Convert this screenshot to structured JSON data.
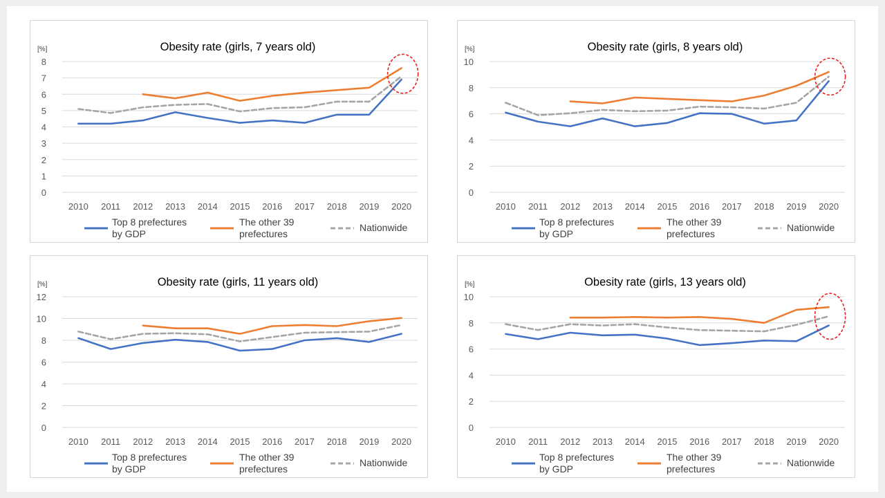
{
  "chart_data": [
    {
      "type": "line",
      "title": "Obesity rate (girls, 7 years old)",
      "ylabel": "[%]",
      "x": [
        "2010",
        "2011",
        "2012",
        "2013",
        "2014",
        "2015",
        "2016",
        "2017",
        "2018",
        "2019",
        "2020"
      ],
      "ylim": [
        0,
        8
      ],
      "yticks": [
        "0",
        "1",
        "2",
        "3",
        "4",
        "5",
        "6",
        "7",
        "8"
      ],
      "grid": true,
      "legend_position": "bottom",
      "highlight": true,
      "series": [
        {
          "name": "Top 8 prefectures by GDP",
          "legend_lines": [
            "Top 8 prefectures",
            "by GDP"
          ],
          "color": "#4472c4",
          "dash": false,
          "values": [
            4.2,
            4.2,
            4.4,
            4.9,
            4.55,
            4.25,
            4.4,
            4.25,
            4.75,
            4.75,
            6.9
          ]
        },
        {
          "name": "The other 39 prefectures",
          "legend_lines": [
            "The other 39",
            "prefectures"
          ],
          "color": "#ed7d31",
          "dash": false,
          "values": [
            null,
            null,
            6.0,
            5.75,
            6.1,
            5.6,
            5.9,
            6.1,
            6.25,
            6.4,
            7.6
          ]
        },
        {
          "name": "Nationwide",
          "legend_lines": [
            "Nationwide"
          ],
          "color": "#a5a5a5",
          "dash": true,
          "values": [
            5.1,
            4.85,
            5.2,
            5.35,
            5.4,
            4.95,
            5.15,
            5.2,
            5.55,
            5.55,
            7.1
          ]
        }
      ]
    },
    {
      "type": "line",
      "title": "Obesity rate (girls, 8 years old)",
      "ylabel": "[%]",
      "x": [
        "2010",
        "2011",
        "2012",
        "2013",
        "2014",
        "2015",
        "2016",
        "2017",
        "2018",
        "2019",
        "2020"
      ],
      "ylim": [
        0,
        10
      ],
      "yticks": [
        "0",
        "2",
        "4",
        "6",
        "8",
        "10"
      ],
      "grid": true,
      "legend_position": "bottom",
      "highlight": true,
      "series": [
        {
          "name": "Top 8 prefectures by GDP",
          "legend_lines": [
            "Top 8 prefectures",
            "by GDP"
          ],
          "color": "#4472c4",
          "dash": false,
          "values": [
            6.1,
            5.4,
            5.05,
            5.65,
            5.05,
            5.3,
            6.05,
            6.0,
            5.25,
            5.5,
            8.5
          ]
        },
        {
          "name": "The other 39 prefectures",
          "legend_lines": [
            "The other 39",
            "prefectures"
          ],
          "color": "#ed7d31",
          "dash": false,
          "values": [
            null,
            null,
            6.95,
            6.8,
            7.25,
            7.15,
            7.05,
            6.95,
            7.4,
            8.15,
            9.2
          ]
        },
        {
          "name": "Nationwide",
          "legend_lines": [
            "Nationwide"
          ],
          "color": "#a5a5a5",
          "dash": true,
          "values": [
            6.85,
            5.9,
            6.05,
            6.3,
            6.2,
            6.25,
            6.55,
            6.5,
            6.4,
            6.85,
            8.85
          ]
        }
      ]
    },
    {
      "type": "line",
      "title": "Obesity rate (girls, 11 years old)",
      "ylabel": "[%]",
      "x": [
        "2010",
        "2011",
        "2012",
        "2013",
        "2014",
        "2015",
        "2016",
        "2017",
        "2018",
        "2019",
        "2020"
      ],
      "ylim": [
        0,
        12
      ],
      "yticks": [
        "0",
        "2",
        "4",
        "6",
        "8",
        "10",
        "12"
      ],
      "grid": true,
      "legend_position": "bottom",
      "highlight": false,
      "series": [
        {
          "name": "Top 8 prefectures by GDP",
          "legend_lines": [
            "Top 8 prefectures",
            "by GDP"
          ],
          "color": "#4472c4",
          "dash": false,
          "values": [
            8.2,
            7.2,
            7.75,
            8.05,
            7.85,
            7.05,
            7.2,
            8.0,
            8.2,
            7.85,
            8.6
          ]
        },
        {
          "name": "The other 39 prefectures",
          "legend_lines": [
            "The other 39",
            "prefectures"
          ],
          "color": "#ed7d31",
          "dash": false,
          "values": [
            null,
            null,
            9.35,
            9.1,
            9.1,
            8.6,
            9.3,
            9.4,
            9.3,
            9.75,
            10.05
          ]
        },
        {
          "name": "Nationwide",
          "legend_lines": [
            "Nationwide"
          ],
          "color": "#a5a5a5",
          "dash": true,
          "values": [
            8.8,
            8.1,
            8.6,
            8.65,
            8.55,
            7.9,
            8.3,
            8.7,
            8.75,
            8.8,
            9.4
          ]
        }
      ]
    },
    {
      "type": "line",
      "title": "Obesity rate (girls, 13 years old)",
      "ylabel": "[%]",
      "x": [
        "2010",
        "2011",
        "2012",
        "2013",
        "2014",
        "2015",
        "2016",
        "2017",
        "2018",
        "2019",
        "2020"
      ],
      "ylim": [
        0,
        10
      ],
      "yticks": [
        "0",
        "2",
        "4",
        "6",
        "8",
        "10"
      ],
      "grid": true,
      "legend_position": "bottom",
      "highlight": true,
      "series": [
        {
          "name": "Top 8 prefectures by GDP",
          "legend_lines": [
            "Top 8 prefectures",
            "by GDP"
          ],
          "color": "#4472c4",
          "dash": false,
          "values": [
            7.15,
            6.75,
            7.25,
            7.05,
            7.1,
            6.8,
            6.3,
            6.45,
            6.65,
            6.6,
            7.8
          ]
        },
        {
          "name": "The other 39 prefectures",
          "legend_lines": [
            "The other 39",
            "prefectures"
          ],
          "color": "#ed7d31",
          "dash": false,
          "values": [
            null,
            null,
            8.4,
            8.4,
            8.45,
            8.4,
            8.45,
            8.3,
            8.0,
            9.0,
            9.2
          ]
        },
        {
          "name": "Nationwide",
          "legend_lines": [
            "Nationwide"
          ],
          "color": "#a5a5a5",
          "dash": true,
          "values": [
            7.9,
            7.45,
            7.9,
            7.8,
            7.9,
            7.65,
            7.45,
            7.4,
            7.35,
            7.85,
            8.5
          ]
        }
      ]
    }
  ],
  "colors": {
    "highlight_ellipse": "#e8201b",
    "grid": "#d9d9d9",
    "axis_text": "#595959"
  }
}
